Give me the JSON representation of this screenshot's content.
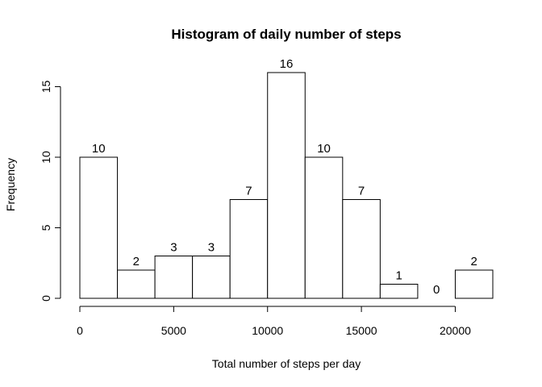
{
  "chart_data": {
    "type": "bar",
    "title": "Histogram of daily number of steps",
    "xlabel": "Total number of steps per day",
    "ylabel": "Frequency",
    "bins": [
      {
        "from": 0,
        "to": 2000,
        "value": 10
      },
      {
        "from": 2000,
        "to": 4000,
        "value": 2
      },
      {
        "from": 4000,
        "to": 6000,
        "value": 3
      },
      {
        "from": 6000,
        "to": 8000,
        "value": 3
      },
      {
        "from": 8000,
        "to": 10000,
        "value": 7
      },
      {
        "from": 10000,
        "to": 12000,
        "value": 16
      },
      {
        "from": 12000,
        "to": 14000,
        "value": 10
      },
      {
        "from": 14000,
        "to": 16000,
        "value": 7
      },
      {
        "from": 16000,
        "to": 18000,
        "value": 1
      },
      {
        "from": 18000,
        "to": 20000,
        "value": 0
      },
      {
        "from": 20000,
        "to": 22000,
        "value": 2
      }
    ],
    "data_labels": [
      "10",
      "2",
      "3",
      "3",
      "7",
      "16",
      "10",
      "7",
      "1",
      "0",
      "2"
    ],
    "xticks": [
      0,
      5000,
      10000,
      15000,
      20000
    ],
    "xtick_labels": [
      "0",
      "5000",
      "10000",
      "15000",
      "20000"
    ],
    "yticks": [
      0,
      5,
      10,
      15
    ],
    "ytick_labels": [
      "0",
      "5",
      "10",
      "15"
    ],
    "xlim": [
      0,
      22000
    ],
    "ylim": [
      0,
      16
    ],
    "grid": false,
    "legend": "none",
    "bar_fill": "#ffffff",
    "bar_stroke": "#000000"
  }
}
